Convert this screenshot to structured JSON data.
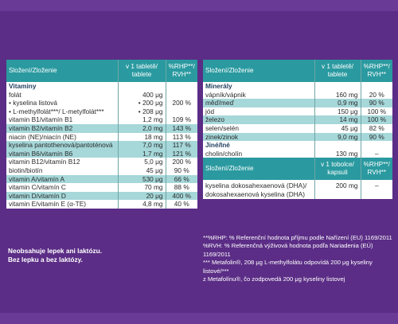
{
  "colors": {
    "background": "#5b2d86",
    "header": "#2a9aa0",
    "band": "#a6d7d9"
  },
  "left_table": {
    "headers": [
      "Složení/Zloženie",
      "v 1 tabletě/ tablete",
      "%RHP**/ RVH**"
    ],
    "section_vitamins": "Vitaminy",
    "rows": [
      {
        "name": "folát",
        "dose": "400 μg",
        "pct": "",
        "shade": "w"
      },
      {
        "name": "• kyselina listová",
        "dose": "• 200 μg",
        "pct": "200 %",
        "shade": "w"
      },
      {
        "name": "• L-methylfolát***/ L-metylfolát***",
        "dose": "• 208 μg",
        "pct": "",
        "shade": "w"
      },
      {
        "name": "vitamin B1/vitamín B1",
        "dose": "1,2 mg",
        "pct": "109 %",
        "shade": "w"
      },
      {
        "name": "vitamin B2/vitamín B2",
        "dose": "2,0 mg",
        "pct": "143 %",
        "shade": "t"
      },
      {
        "name": "niacin (NE)/niacín (NE)",
        "dose": "18 mg",
        "pct": "113 %",
        "shade": "w"
      },
      {
        "name": "kyselina pantothenová/pantoténová",
        "dose": "7,0 mg",
        "pct": "117 %",
        "shade": "t"
      },
      {
        "name": "vitamin B6/vitamín B6",
        "dose": "1,7 mg",
        "pct": "121 %",
        "shade": "t"
      },
      {
        "name": "vitamin B12/vitamín B12",
        "dose": "5,0 μg",
        "pct": "200 %",
        "shade": "w"
      },
      {
        "name": "biotin/biotín",
        "dose": "45 μg",
        "pct": "90 %",
        "shade": "w"
      },
      {
        "name": "vitamin A/vitamín A",
        "dose": "530 μg",
        "pct": "66 %",
        "shade": "t"
      },
      {
        "name": "vitamin C/vitamín C",
        "dose": "70 mg",
        "pct": "88 %",
        "shade": "w"
      },
      {
        "name": "vitamin D/vitamín D",
        "dose": "20 μg",
        "pct": "400 %",
        "shade": "t"
      },
      {
        "name": "vitamin E/vitamín E (α-TE)",
        "dose": "4,8 mg",
        "pct": "40 %",
        "shade": "w"
      }
    ]
  },
  "right_table": {
    "headers": [
      "Složení/Zloženie",
      "v 1 tabletě/ tablete",
      "%RHP**/ RVH**"
    ],
    "section_minerals": "Minerály",
    "minerals": [
      {
        "name": "vápník/vápnik",
        "dose": "160 mg",
        "pct": "20 %",
        "shade": "w"
      },
      {
        "name": "měď/meď",
        "dose": "0,9 mg",
        "pct": "90 %",
        "shade": "t"
      },
      {
        "name": "jód",
        "dose": "150 μg",
        "pct": "100 %",
        "shade": "w"
      },
      {
        "name": "železo",
        "dose": "14 mg",
        "pct": "100 %",
        "shade": "t"
      },
      {
        "name": "selen/selén",
        "dose": "45 μg",
        "pct": "82 %",
        "shade": "w"
      },
      {
        "name": "zinek/zinok",
        "dose": "9,0 mg",
        "pct": "90 %",
        "shade": "t"
      }
    ],
    "section_other": "Jiné/Iné",
    "other": [
      {
        "name": "cholin/cholín",
        "dose": "130 mg",
        "pct": "–",
        "shade": "w"
      }
    ],
    "headers2": [
      "Složení/Zloženie",
      "v 1 tobolce/ kapsuli",
      "%RHP**/ RVH**"
    ],
    "dha": {
      "name1": "kyselina dokosahexaenová (DHA)/",
      "name2": "dokosahexaenová kyselina (DHA)",
      "dose": "200 mg",
      "pct": "–"
    }
  },
  "notes_left": [
    "Neobsahuje lepek ani laktózu.",
    "Bez lepku a bez laktózy."
  ],
  "notes_right": [
    "**%RHP: % Referenční hodnota příjmu podle Nařízení (EU) 1169/2011",
    "%RVH: % Referenčná výživová hodnota podľa Nariadenia (EÚ) 1169/2011",
    "*** Metafolin®, 208 μg L-methylfolátu odpovídá 200 μg kyseliny listové/***",
    "z Metafolínu®, čo zodpovedá 200 μg kyseliny listovej"
  ]
}
